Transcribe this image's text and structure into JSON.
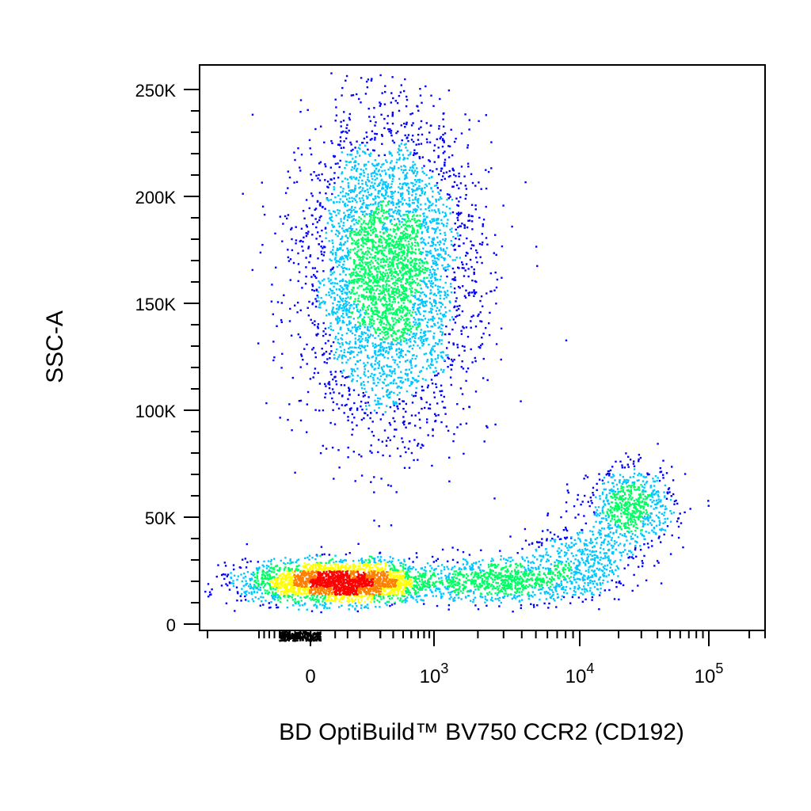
{
  "chart_data": {
    "type": "scatter",
    "subtype": "flow-cytometry-density-pseudocolor",
    "xlabel": "BD OptiBuild™ BV750 CCR2 (CD192)",
    "ylabel": "SSC-A",
    "x_scale": "biexponential",
    "y_scale": "linear",
    "ylim": [
      -5000,
      262144
    ],
    "xlim": [
      -2000,
      262144
    ],
    "y_ticks": [
      {
        "value": 0,
        "label": "0"
      },
      {
        "value": 50000,
        "label": "50K"
      },
      {
        "value": 100000,
        "label": "100K"
      },
      {
        "value": 150000,
        "label": "150K"
      },
      {
        "value": 200000,
        "label": "200K"
      },
      {
        "value": 250000,
        "label": "250K"
      }
    ],
    "x_ticks": [
      {
        "value": 0,
        "base": "0",
        "exp": ""
      },
      {
        "value": 1000,
        "base": "10",
        "exp": "3"
      },
      {
        "value": 10000,
        "base": "10",
        "exp": "4"
      },
      {
        "value": 100000,
        "base": "10",
        "exp": "5"
      }
    ],
    "grid": false,
    "legend": "none",
    "density_colormap": [
      "#0000ff",
      "#00c8ff",
      "#00ff64",
      "#ffff00",
      "#ff8000",
      "#ff0000"
    ],
    "populations": [
      {
        "name": "",
        "center_x": 350,
        "center_y": 165000,
        "spread_x_decades": 0.35,
        "spread_y": 35000,
        "relative_events": 0.48
      },
      {
        "name": "",
        "center_x": 120,
        "center_y": 20000,
        "spread_x_decades": 0.4,
        "spread_y": 5000,
        "relative_events": 0.3
      },
      {
        "name": "",
        "center_x": 3000,
        "center_y": 21000,
        "spread_x_decades": 0.35,
        "spread_y": 5000,
        "relative_events": 0.09
      },
      {
        "name": "",
        "center_x": 25000,
        "center_y": 55000,
        "spread_x_decades": 0.18,
        "spread_y": 9000,
        "relative_events": 0.08
      },
      {
        "name": "",
        "center_x": 10000,
        "center_y": 30000,
        "spread_x_decades": 0.25,
        "spread_y": 9000,
        "relative_events": 0.05
      }
    ]
  }
}
